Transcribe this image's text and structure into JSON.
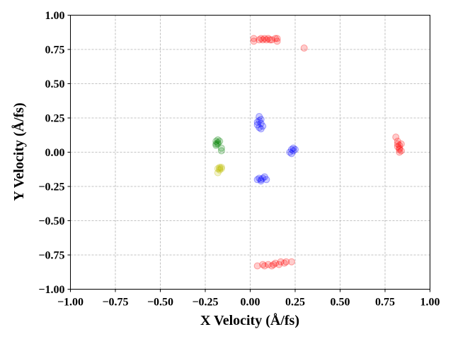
{
  "chart_data": {
    "type": "scatter",
    "title": "",
    "xlabel": "X Velocity (Å/fs)",
    "ylabel": "Y Velocity (Å/fs)",
    "xlim": [
      -1.0,
      1.0
    ],
    "ylim": [
      -1.0,
      1.0
    ],
    "xticks": [
      "−1.00",
      "−0.75",
      "−0.50",
      "−0.25",
      "0.00",
      "0.25",
      "0.50",
      "0.75",
      "1.00"
    ],
    "yticks": [
      "−1.00",
      "−0.75",
      "−0.50",
      "−0.25",
      "0.00",
      "0.25",
      "0.50",
      "0.75",
      "1.00"
    ],
    "grid": true,
    "marker_alpha": 0.2,
    "series": [
      {
        "color": "#ff0000",
        "points": [
          [
            0.02,
            0.83
          ],
          [
            0.02,
            0.81
          ],
          [
            0.05,
            0.82
          ],
          [
            0.06,
            0.83
          ],
          [
            0.07,
            0.82
          ],
          [
            0.08,
            0.83
          ],
          [
            0.09,
            0.82
          ],
          [
            0.1,
            0.83
          ],
          [
            0.11,
            0.82
          ],
          [
            0.12,
            0.82
          ],
          [
            0.14,
            0.83
          ],
          [
            0.15,
            0.81
          ],
          [
            0.15,
            0.83
          ],
          [
            0.3,
            0.76
          ],
          [
            0.81,
            0.11
          ],
          [
            0.82,
            0.08
          ],
          [
            0.82,
            0.06
          ],
          [
            0.83,
            0.05
          ],
          [
            0.83,
            0.03
          ],
          [
            0.82,
            0.04
          ],
          [
            0.83,
            0.02
          ],
          [
            0.83,
            0.0
          ],
          [
            0.84,
            0.01
          ],
          [
            0.84,
            0.06
          ],
          [
            0.04,
            -0.83
          ],
          [
            0.07,
            -0.82
          ],
          [
            0.08,
            -0.83
          ],
          [
            0.1,
            -0.82
          ],
          [
            0.12,
            -0.83
          ],
          [
            0.13,
            -0.82
          ],
          [
            0.14,
            -0.81
          ],
          [
            0.16,
            -0.82
          ],
          [
            0.17,
            -0.8
          ],
          [
            0.19,
            -0.81
          ],
          [
            0.2,
            -0.8
          ],
          [
            0.23,
            -0.8
          ]
        ]
      },
      {
        "color": "#0000ff",
        "points": [
          [
            0.04,
            0.22
          ],
          [
            0.04,
            0.2
          ],
          [
            0.05,
            0.23
          ],
          [
            0.05,
            0.18
          ],
          [
            0.06,
            0.21
          ],
          [
            0.06,
            0.24
          ],
          [
            0.07,
            0.19
          ],
          [
            0.05,
            0.26
          ],
          [
            0.06,
            0.17
          ],
          [
            0.22,
            0.0
          ],
          [
            0.23,
            0.02
          ],
          [
            0.24,
            0.01
          ],
          [
            0.24,
            0.03
          ],
          [
            0.25,
            0.02
          ],
          [
            0.23,
            -0.01
          ],
          [
            0.04,
            -0.2
          ],
          [
            0.05,
            -0.19
          ],
          [
            0.06,
            -0.2
          ],
          [
            0.07,
            -0.19
          ],
          [
            0.08,
            -0.18
          ],
          [
            0.06,
            -0.21
          ],
          [
            0.09,
            -0.2
          ]
        ]
      },
      {
        "color": "#008000",
        "points": [
          [
            -0.19,
            0.06
          ],
          [
            -0.19,
            0.08
          ],
          [
            -0.18,
            0.07
          ],
          [
            -0.18,
            0.09
          ],
          [
            -0.17,
            0.08
          ],
          [
            -0.19,
            0.05
          ],
          [
            -0.18,
            0.06
          ],
          [
            -0.16,
            0.03
          ],
          [
            -0.16,
            0.01
          ]
        ]
      },
      {
        "color": "#bfbf00",
        "points": [
          [
            -0.18,
            -0.12
          ],
          [
            -0.17,
            -0.11
          ],
          [
            -0.16,
            -0.12
          ],
          [
            -0.17,
            -0.13
          ],
          [
            -0.16,
            -0.11
          ],
          [
            -0.18,
            -0.15
          ],
          [
            -0.17,
            -0.12
          ]
        ]
      }
    ]
  }
}
